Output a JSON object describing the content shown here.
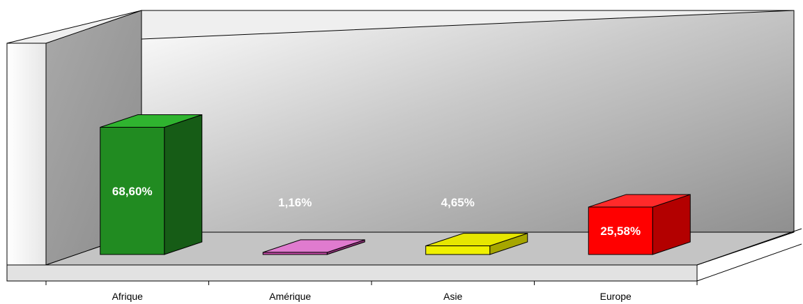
{
  "chart_data": {
    "type": "bar",
    "three_d": true,
    "categories": [
      "Afrique",
      "Amérique",
      "Asie",
      "Europe"
    ],
    "values": [
      68.6,
      1.16,
      4.65,
      25.58
    ],
    "labels": [
      "68,60%",
      "1,16%",
      "4,65%",
      "25,58%"
    ],
    "title": "",
    "xlabel": "",
    "ylabel": "",
    "ylim": [
      0,
      100
    ],
    "grid": false,
    "legend": "none",
    "colors": {
      "Afrique": {
        "front": "#218b21",
        "top": "#2fb42f",
        "side": "#165c16"
      },
      "Amérique": {
        "front": "#c74aa8",
        "top": "#e07bcf",
        "side": "#8a2f74"
      },
      "Asie": {
        "front": "#f0f000",
        "top": "#e6e600",
        "side": "#a6a600"
      },
      "Europe": {
        "front": "#ff0000",
        "top": "#ff2a2a",
        "side": "#b30000"
      }
    }
  }
}
